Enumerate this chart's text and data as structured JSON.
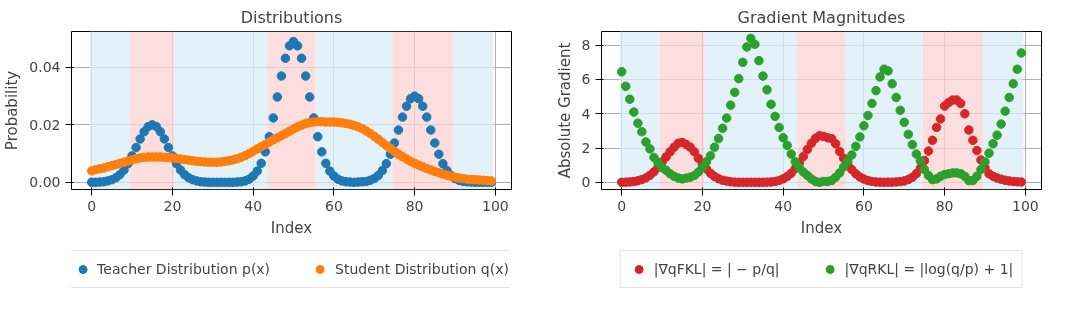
{
  "chart_data": [
    {
      "type": "scatter",
      "title": "Distributions",
      "xlabel": "Index",
      "ylabel": "Probability",
      "marker": "circle",
      "grid": true,
      "legend": "bottom",
      "xlim": [
        -5,
        104
      ],
      "ylim": [
        -0.0025,
        0.0525
      ],
      "xticks": [
        0,
        20,
        40,
        60,
        80,
        100
      ],
      "yticks": [
        {
          "value": 0,
          "label": "0.00"
        },
        {
          "value": 0.02,
          "label": "0.02"
        },
        {
          "value": 0.04,
          "label": "0.04"
        }
      ],
      "bands": [
        {
          "axis": "x",
          "from": -0.5,
          "to": 9.5,
          "color": "#d8eef6"
        },
        {
          "axis": "x",
          "from": 9.5,
          "to": 20.5,
          "color": "#fbd3d3"
        },
        {
          "axis": "x",
          "from": 20.5,
          "to": 43.5,
          "color": "#d8eef6"
        },
        {
          "axis": "x",
          "from": 43.5,
          "to": 55.5,
          "color": "#fbd3d3"
        },
        {
          "axis": "x",
          "from": 55.5,
          "to": 74.5,
          "color": "#d8eef6"
        },
        {
          "axis": "x",
          "from": 74.5,
          "to": 89.5,
          "color": "#fbd3d3"
        },
        {
          "axis": "x",
          "from": 89.5,
          "to": 99.5,
          "color": "#d8eef6"
        }
      ],
      "x": [
        0,
        1,
        2,
        3,
        4,
        5,
        6,
        7,
        8,
        9,
        10,
        11,
        12,
        13,
        14,
        15,
        16,
        17,
        18,
        19,
        20,
        21,
        22,
        23,
        24,
        25,
        26,
        27,
        28,
        29,
        30,
        31,
        32,
        33,
        34,
        35,
        36,
        37,
        38,
        39,
        40,
        41,
        42,
        43,
        44,
        45,
        46,
        47,
        48,
        49,
        50,
        51,
        52,
        53,
        54,
        55,
        56,
        57,
        58,
        59,
        60,
        61,
        62,
        63,
        64,
        65,
        66,
        67,
        68,
        69,
        70,
        71,
        72,
        73,
        74,
        75,
        76,
        77,
        78,
        79,
        80,
        81,
        82,
        83,
        84,
        85,
        86,
        87,
        88,
        89,
        90,
        91,
        92,
        93,
        94,
        95,
        96,
        97,
        98,
        99
      ],
      "series": [
        {
          "name": "Teacher Distribution p(x)",
          "color": "#1f77b4",
          "values": [
            0.0,
            0.0,
            0.0001,
            0.0002,
            0.0005,
            0.0009,
            0.0016,
            0.0027,
            0.0043,
            0.0065,
            0.0092,
            0.0121,
            0.0151,
            0.0176,
            0.0194,
            0.02,
            0.0194,
            0.0176,
            0.0151,
            0.0121,
            0.0092,
            0.0065,
            0.0043,
            0.0027,
            0.0016,
            0.0009,
            0.0005,
            0.0002,
            0.0001,
            0.0,
            0.0,
            0.0,
            0.0,
            0.0,
            0.0,
            0.0,
            0.0001,
            0.0002,
            0.0005,
            0.0011,
            0.0022,
            0.0039,
            0.0066,
            0.0106,
            0.0159,
            0.0224,
            0.0297,
            0.037,
            0.0432,
            0.0475,
            0.049,
            0.0475,
            0.0432,
            0.037,
            0.0297,
            0.0224,
            0.0159,
            0.0106,
            0.0066,
            0.0039,
            0.0022,
            0.0011,
            0.0005,
            0.0002,
            0.0001,
            0.0,
            0.0001,
            0.0002,
            0.0003,
            0.0007,
            0.0013,
            0.0024,
            0.0041,
            0.0065,
            0.0098,
            0.0137,
            0.0182,
            0.0227,
            0.0265,
            0.0291,
            0.03,
            0.0291,
            0.0265,
            0.0227,
            0.0182,
            0.0137,
            0.0098,
            0.0065,
            0.0041,
            0.0024,
            0.0013,
            0.0007,
            0.0003,
            0.0002,
            0.0001,
            0.0,
            0.0,
            0.0,
            0.0,
            0.0
          ]
        },
        {
          "name": "Student Distribution q(x)",
          "color": "#ff7f0e",
          "values": [
            0.004,
            0.0044,
            0.0047,
            0.005,
            0.0054,
            0.0058,
            0.0062,
            0.0066,
            0.007,
            0.0074,
            0.0078,
            0.0082,
            0.0085,
            0.0087,
            0.0088,
            0.0088,
            0.0088,
            0.0088,
            0.0087,
            0.0086,
            0.0085,
            0.0083,
            0.0081,
            0.0079,
            0.0077,
            0.0075,
            0.0073,
            0.0072,
            0.0071,
            0.007,
            0.007,
            0.007,
            0.0071,
            0.0073,
            0.0075,
            0.0078,
            0.0082,
            0.0087,
            0.0093,
            0.01,
            0.0108,
            0.0116,
            0.0124,
            0.0132,
            0.014,
            0.0148,
            0.0155,
            0.0162,
            0.017,
            0.0178,
            0.0186,
            0.0193,
            0.0199,
            0.0204,
            0.0208,
            0.021,
            0.0211,
            0.0211,
            0.021,
            0.021,
            0.021,
            0.0209,
            0.0207,
            0.0205,
            0.0202,
            0.0198,
            0.0193,
            0.0187,
            0.0179,
            0.017,
            0.016,
            0.015,
            0.0139,
            0.0128,
            0.0118,
            0.0108,
            0.0098,
            0.0089,
            0.0081,
            0.0073,
            0.0066,
            0.006,
            0.0054,
            0.0048,
            0.0043,
            0.0038,
            0.0033,
            0.0029,
            0.0025,
            0.0021,
            0.0018,
            0.0015,
            0.0013,
            0.0011,
            0.001,
            0.0009,
            0.0008,
            0.0007,
            0.0006,
            0.0005
          ]
        }
      ]
    },
    {
      "type": "scatter",
      "title": "Gradient Magnitudes",
      "xlabel": "Index",
      "ylabel": "Absolute Gradient",
      "marker": "circle",
      "grid": true,
      "legend": "bottom",
      "xlim": [
        -5,
        104
      ],
      "ylim": [
        -0.42,
        8.8
      ],
      "xticks": [
        0,
        20,
        40,
        60,
        80,
        100
      ],
      "yticks": [
        0,
        2,
        4,
        6,
        8
      ],
      "bands": [
        {
          "axis": "x",
          "from": -0.5,
          "to": 9.5,
          "color": "#d8eef6"
        },
        {
          "axis": "x",
          "from": 9.5,
          "to": 20.5,
          "color": "#fbd3d3"
        },
        {
          "axis": "x",
          "from": 20.5,
          "to": 43.5,
          "color": "#d8eef6"
        },
        {
          "axis": "x",
          "from": 43.5,
          "to": 55.5,
          "color": "#fbd3d3"
        },
        {
          "axis": "x",
          "from": 55.5,
          "to": 74.5,
          "color": "#d8eef6"
        },
        {
          "axis": "x",
          "from": 74.5,
          "to": 89.5,
          "color": "#fbd3d3"
        },
        {
          "axis": "x",
          "from": 89.5,
          "to": 99.5,
          "color": "#d8eef6"
        }
      ],
      "x": [
        0,
        1,
        2,
        3,
        4,
        5,
        6,
        7,
        8,
        9,
        10,
        11,
        12,
        13,
        14,
        15,
        16,
        17,
        18,
        19,
        20,
        21,
        22,
        23,
        24,
        25,
        26,
        27,
        28,
        29,
        30,
        31,
        32,
        33,
        34,
        35,
        36,
        37,
        38,
        39,
        40,
        41,
        42,
        43,
        44,
        45,
        46,
        47,
        48,
        49,
        50,
        51,
        52,
        53,
        54,
        55,
        56,
        57,
        58,
        59,
        60,
        61,
        62,
        63,
        64,
        65,
        66,
        67,
        68,
        69,
        70,
        71,
        72,
        73,
        74,
        75,
        76,
        77,
        78,
        79,
        80,
        81,
        82,
        83,
        84,
        85,
        86,
        87,
        88,
        89,
        90,
        91,
        92,
        93,
        94,
        95,
        96,
        97,
        98,
        99
      ],
      "series": [
        {
          "name": "|∇qFKL| = | − p/q|",
          "color": "#d62728",
          "values": [
            0.0,
            0.01,
            0.02,
            0.04,
            0.09,
            0.16,
            0.26,
            0.41,
            0.61,
            0.88,
            1.18,
            1.48,
            1.78,
            2.05,
            2.28,
            2.33,
            2.2,
            2.05,
            1.78,
            1.4,
            1.05,
            0.78,
            0.53,
            0.34,
            0.21,
            0.12,
            0.07,
            0.03,
            0.01,
            0.0,
            0.0,
            0.0,
            0.0,
            0.0,
            0.0,
            0.0,
            0.01,
            0.02,
            0.05,
            0.11,
            0.2,
            0.34,
            0.53,
            0.8,
            1.14,
            1.51,
            1.92,
            2.28,
            2.56,
            2.72,
            2.68,
            2.6,
            2.55,
            2.25,
            1.8,
            1.4,
            1.05,
            0.75,
            0.5,
            0.31,
            0.19,
            0.1,
            0.05,
            0.02,
            0.01,
            0.0,
            0.01,
            0.01,
            0.02,
            0.04,
            0.08,
            0.16,
            0.29,
            0.51,
            0.83,
            1.27,
            1.82,
            2.45,
            3.2,
            3.7,
            4.45,
            4.65,
            4.8,
            4.8,
            4.6,
            4.0,
            3.05,
            2.45,
            1.85,
            1.3,
            0.85,
            0.5,
            0.35,
            0.25,
            0.18,
            0.12,
            0.08,
            0.05,
            0.03,
            0.02
          ]
        },
        {
          "name": "|∇qRKL| = |log(q/p) + 1|",
          "color": "#2ca02c",
          "values": [
            6.45,
            5.6,
            4.85,
            4.1,
            3.45,
            2.95,
            2.35,
            1.95,
            1.45,
            1.15,
            0.85,
            0.7,
            0.5,
            0.35,
            0.25,
            0.2,
            0.25,
            0.3,
            0.4,
            0.6,
            0.85,
            1.2,
            1.55,
            2.05,
            2.55,
            3.15,
            3.75,
            4.5,
            5.25,
            6.05,
            7.0,
            7.9,
            8.4,
            8.05,
            7.1,
            6.2,
            5.4,
            4.55,
            3.85,
            3.2,
            2.6,
            2.15,
            1.65,
            1.2,
            0.85,
            0.6,
            0.4,
            0.2,
            0.05,
            0.0,
            0.05,
            0.05,
            0.1,
            0.3,
            0.55,
            0.9,
            1.25,
            1.6,
            2.1,
            2.65,
            3.3,
            3.9,
            4.6,
            5.35,
            6.15,
            6.6,
            6.5,
            5.75,
            4.95,
            4.2,
            3.5,
            2.8,
            2.2,
            1.65,
            1.25,
            0.75,
            0.4,
            0.15,
            0.2,
            0.35,
            0.45,
            0.5,
            0.55,
            0.55,
            0.5,
            0.35,
            0.1,
            0.1,
            0.35,
            0.75,
            1.2,
            1.7,
            2.25,
            2.75,
            3.4,
            4.15,
            4.95,
            5.75,
            6.6,
            7.55
          ]
        }
      ]
    }
  ]
}
